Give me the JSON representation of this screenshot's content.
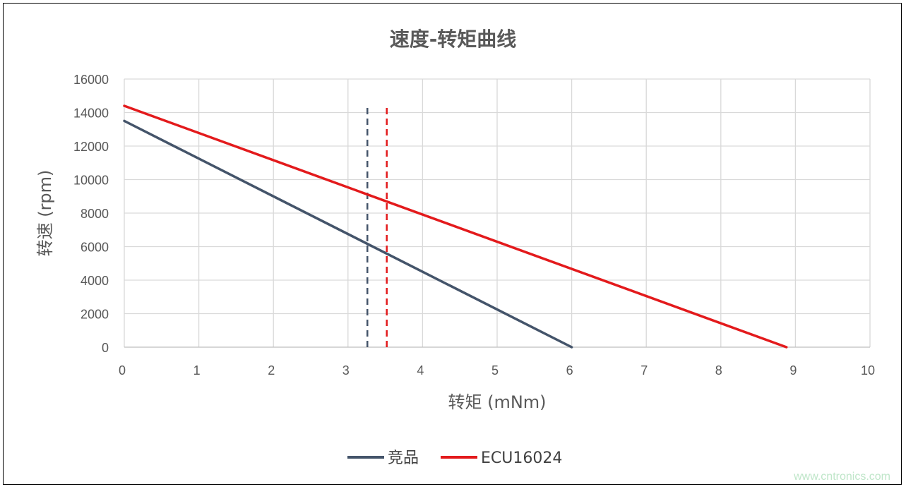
{
  "chart_data": {
    "type": "line",
    "title": "速度-转矩曲线",
    "xlabel": "转矩 (mNm)",
    "ylabel": "转速 (rpm)",
    "xlim": [
      0,
      10
    ],
    "ylim": [
      0,
      16000
    ],
    "x_ticks": [
      "0",
      "1",
      "2",
      "3",
      "4",
      "5",
      "6",
      "7",
      "8",
      "9",
      "10"
    ],
    "y_ticks": [
      "0",
      "2000",
      "4000",
      "6000",
      "8000",
      "10000",
      "12000",
      "14000",
      "16000"
    ],
    "grid": true,
    "legend_position": "bottom",
    "series": [
      {
        "name": "竞品",
        "color": "#44546a",
        "x": [
          0,
          6.0
        ],
        "y": [
          13500,
          0
        ]
      },
      {
        "name": "ECU16024",
        "color": "#e31a1c",
        "x": [
          0,
          8.88
        ],
        "y": [
          14400,
          0
        ]
      }
    ],
    "reference_lines": [
      {
        "x": 3.26,
        "y_range": [
          0,
          14500
        ],
        "style": "dashed",
        "color": "#44546a"
      },
      {
        "x": 3.52,
        "y_range": [
          0,
          14500
        ],
        "style": "dashed",
        "color": "#e31a1c"
      }
    ]
  },
  "watermark": "www.cntronics.com"
}
